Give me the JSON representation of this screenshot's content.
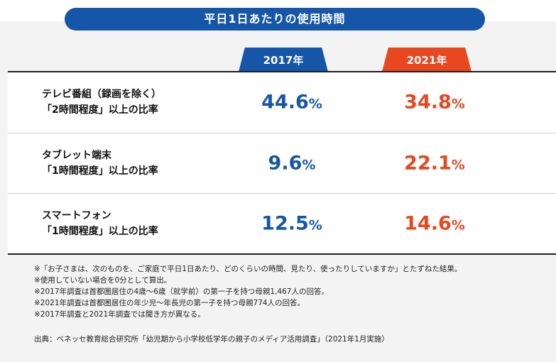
{
  "chart_data": {
    "type": "table",
    "title": "平日1日あたりの使用時間",
    "columns": [
      "2017年",
      "2021年"
    ],
    "rows": [
      {
        "label": "テレビ番組（録画を除く）\n「2時間程度」以上の比率",
        "values": [
          44.6,
          34.8
        ],
        "display": [
          "44.6",
          "34.8"
        ]
      },
      {
        "label": "タブレット端末\n「1時間程度」以上の比率",
        "values": [
          9.6,
          22.1
        ],
        "display": [
          "9.6",
          "22.1"
        ]
      },
      {
        "label": "スマートフォン\n「1時間程度」以上の比率",
        "values": [
          12.5,
          14.6
        ],
        "display": [
          "12.5",
          "14.6"
        ]
      }
    ],
    "unit": "%",
    "colors": {
      "2017": "#1556a8",
      "2021": "#e8471f"
    }
  },
  "notes": [
    "※「お子さまは、次のものを、ご家庭で平日1日あたり、どのくらいの時間、見たり、使ったりしていますか」とたずねた結果。",
    "※使用していない場合を0分として算出。",
    "※2017年調査は首都圏居住の4歳〜6歳（就学前）の第一子を持つ母親1,467人の回答。",
    "※2021年調査は首都圏居住の年少児〜年長児の第一子を持つ母親774人の回答。",
    "※2017年調査と2021年調査では聞き方が異なる。"
  ],
  "source": "出典：ベネッセ教育総合研究所「幼児期から小学校低学年の親子のメディア活用調査」（2021年1月実施）"
}
